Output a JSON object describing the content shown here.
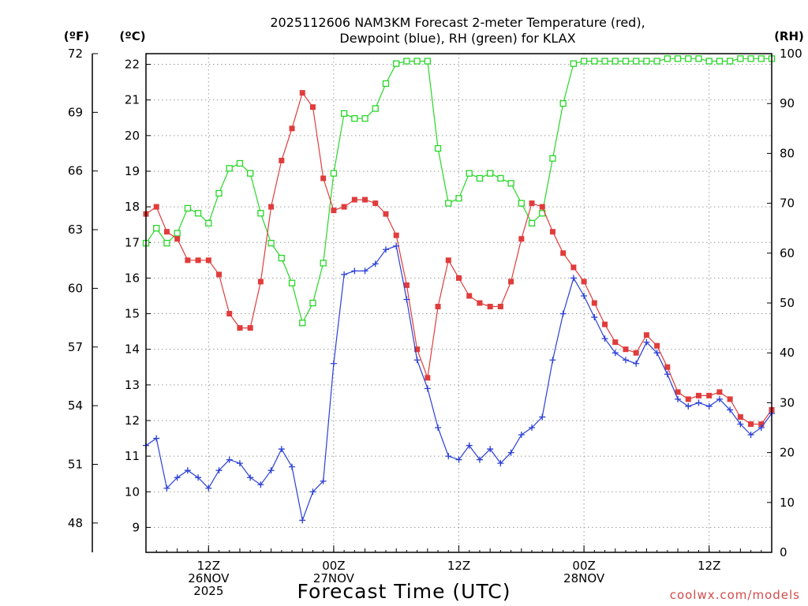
{
  "chart_data": {
    "type": "line",
    "title_line1": "2025112606 NAM3KM Forecast 2-meter Temperature (red),",
    "title_line2": "Dewpoint (blue), RH (green) for KLAX",
    "xlabel": "Forecast Time (UTC)",
    "credit": "coolwx.com/models",
    "unit_f": "(ºF)",
    "unit_c": "(ºC)",
    "unit_rh": "(RH)",
    "x_start": "2025-11-26 06Z",
    "x_step_hours": 1,
    "x_range_hours": [
      0,
      60
    ],
    "grid": true,
    "ylim_c": [
      8.3,
      22.3
    ],
    "ylim_rh": [
      0,
      100
    ],
    "ylim_f": [
      46.5,
      72.0
    ],
    "left_ticks_f": [
      "48",
      "51",
      "54",
      "57",
      "60",
      "63",
      "66",
      "69",
      "72"
    ],
    "left_ticks_c": [
      "9",
      "10",
      "11",
      "12",
      "13",
      "14",
      "15",
      "16",
      "17",
      "18",
      "19",
      "20",
      "21",
      "22"
    ],
    "right_ticks_rh": [
      "0",
      "10",
      "20",
      "30",
      "40",
      "50",
      "60",
      "70",
      "80",
      "90",
      "100"
    ],
    "x_ticks": [
      {
        "hour": 6,
        "lines": [
          "12Z",
          "26NOV",
          "2025"
        ]
      },
      {
        "hour": 18,
        "lines": [
          "00Z",
          "27NOV"
        ]
      },
      {
        "hour": 30,
        "lines": [
          "12Z"
        ]
      },
      {
        "hour": 42,
        "lines": [
          "00Z",
          "28NOV"
        ]
      },
      {
        "hour": 54,
        "lines": [
          "12Z"
        ]
      }
    ],
    "series": [
      {
        "key": "temperature",
        "color": "#e03c3c",
        "axis": "C",
        "marker": "filled-square",
        "values": [
          17.8,
          18.0,
          17.3,
          17.1,
          16.5,
          16.5,
          16.5,
          16.1,
          15.0,
          14.6,
          14.6,
          15.9,
          18.0,
          19.3,
          20.2,
          21.2,
          20.8,
          18.8,
          17.9,
          18.0,
          18.2,
          18.2,
          18.1,
          17.8,
          17.2,
          15.8,
          14.0,
          13.2,
          15.2,
          16.5,
          16.0,
          15.5,
          15.3,
          15.2,
          15.2,
          15.9,
          17.1,
          18.1,
          18.0,
          17.3,
          16.7,
          16.3,
          15.9,
          15.3,
          14.7,
          14.2,
          14.0,
          13.9,
          14.4,
          14.1,
          13.5,
          12.8,
          12.6,
          12.7,
          12.7,
          12.8,
          12.6,
          12.1,
          11.9,
          11.9,
          12.3
        ]
      },
      {
        "key": "dewpoint",
        "color": "#2b3fd6",
        "axis": "C",
        "marker": "plus",
        "values": [
          11.3,
          11.5,
          10.1,
          10.4,
          10.6,
          10.4,
          10.1,
          10.6,
          10.9,
          10.8,
          10.4,
          10.2,
          10.6,
          11.2,
          10.7,
          9.2,
          10.0,
          10.3,
          13.6,
          16.1,
          16.2,
          16.2,
          16.4,
          16.8,
          16.9,
          15.4,
          13.7,
          12.9,
          11.8,
          11.0,
          10.9,
          11.3,
          10.9,
          11.2,
          10.8,
          11.1,
          11.6,
          11.8,
          12.1,
          13.7,
          15.0,
          16.0,
          15.5,
          14.9,
          14.3,
          13.9,
          13.7,
          13.6,
          14.2,
          13.9,
          13.3,
          12.6,
          12.4,
          12.5,
          12.4,
          12.6,
          12.3,
          11.9,
          11.6,
          11.8,
          12.2
        ]
      },
      {
        "key": "relative humidity",
        "color": "#27d727",
        "axis": "RH",
        "marker": "open-square",
        "values": [
          62,
          65,
          62,
          64,
          69,
          68,
          66,
          72,
          77,
          78,
          76,
          68,
          62,
          59,
          54,
          46,
          50,
          58,
          76,
          88,
          87,
          87,
          89,
          94,
          98,
          98.5,
          98.5,
          98.5,
          81,
          70,
          71,
          76,
          75,
          76,
          75,
          74,
          70,
          66,
          68,
          79,
          90,
          98,
          98.5,
          98.5,
          98.5,
          98.5,
          98.5,
          98.5,
          98.5,
          98.5,
          99,
          99,
          99,
          99,
          98.5,
          98.5,
          98.5,
          99,
          99,
          99,
          99
        ]
      }
    ]
  }
}
